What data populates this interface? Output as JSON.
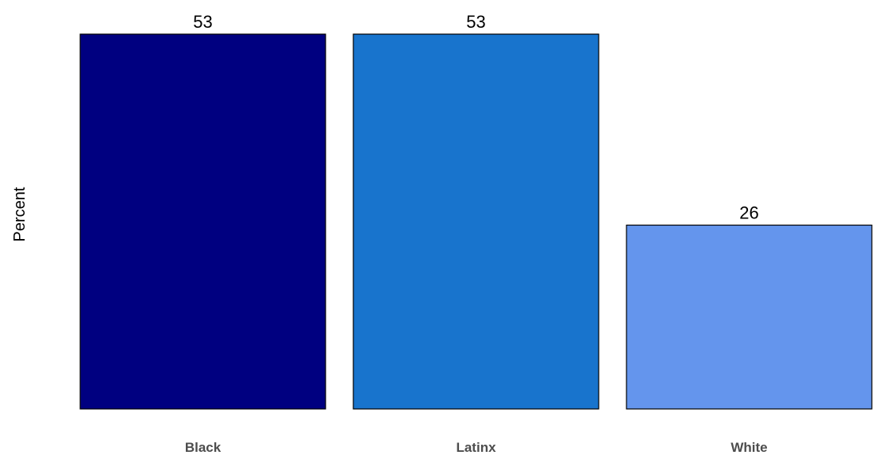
{
  "chart_data": {
    "type": "bar",
    "categories": [
      "Black",
      "Latinx",
      "White"
    ],
    "values": [
      53,
      53,
      26
    ],
    "value_labels": [
      "53",
      "53",
      "26"
    ],
    "colors": [
      "#000080",
      "#1874CD",
      "#6495ED"
    ],
    "bar_outline": "#000000",
    "title": "",
    "xlabel": "",
    "ylabel": "Percent",
    "ylim": [
      0,
      53
    ],
    "grid": false,
    "legend": "none"
  }
}
